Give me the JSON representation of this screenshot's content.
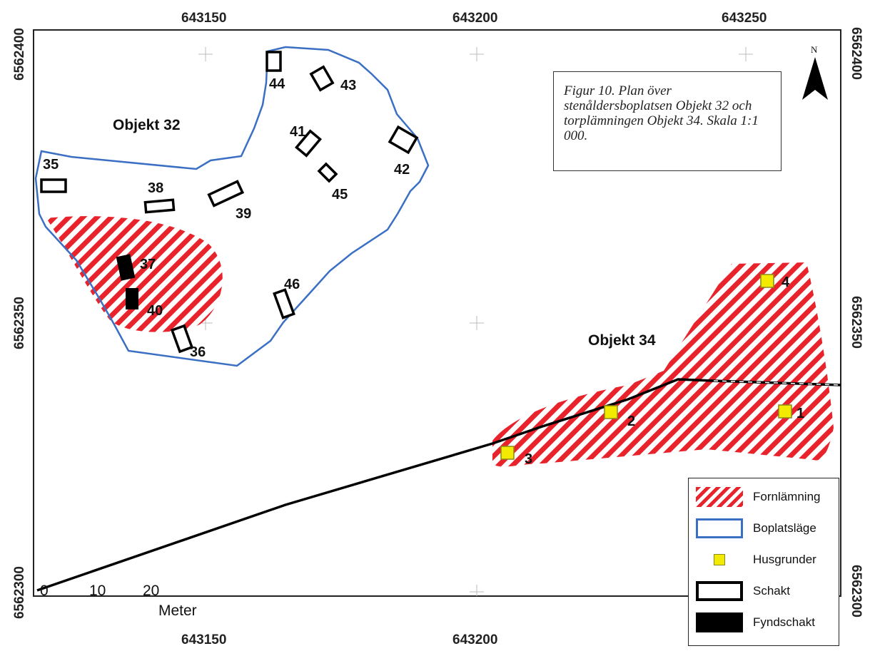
{
  "caption": "Figur 10. Plan över stenåldersboplatsen Objekt 32 och torplämningen Objekt 34. Skala 1:1 000.",
  "coordinates": {
    "x_top": [
      "643150",
      "643200",
      "643250"
    ],
    "x_bottom": [
      "643150",
      "643200",
      "643250"
    ],
    "y_left": [
      "6562400",
      "6562350",
      "6562300"
    ],
    "y_right": [
      "6562400",
      "6562350",
      "6562300"
    ]
  },
  "north_label": "N",
  "objects": {
    "obj32": "Objekt 32",
    "obj34": "Objekt 34"
  },
  "trenches": [
    "35",
    "36",
    "37",
    "38",
    "39",
    "40",
    "41",
    "42",
    "43",
    "44",
    "45",
    "46"
  ],
  "house_foundations": [
    "1",
    "2",
    "3",
    "4"
  ],
  "scalebar": {
    "ticks": [
      "0",
      "10",
      "20"
    ],
    "unit": "Meter"
  },
  "legend": [
    {
      "label": "Fornlämning",
      "symbol": "red-hatch"
    },
    {
      "label": "Boplatsläge",
      "symbol": "blue-outline"
    },
    {
      "label": "Husgrunder",
      "symbol": "yellow-square"
    },
    {
      "label": "Schakt",
      "symbol": "black-outline"
    },
    {
      "label": "Fyndschakt",
      "symbol": "black-fill"
    }
  ],
  "colors": {
    "hatch": "#e8232b",
    "boundary": "#3a6fc4",
    "house": "#f2ea00",
    "trench": "#000000"
  }
}
